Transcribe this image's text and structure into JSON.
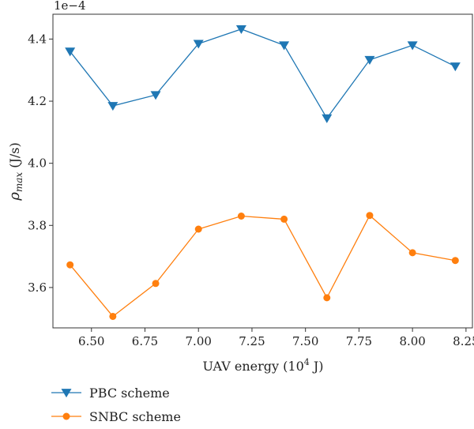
{
  "chart_data": {
    "type": "line",
    "xlabel": "UAV energy (10",
    "xlabel_exp": "4",
    "xlabel_tail": " J)",
    "ylabel_sym": "ρ",
    "ylabel_sub": "max",
    "ylabel_unit": " (J/s)",
    "offset_text": "1e−4",
    "xlim": [
      6.32,
      8.28
    ],
    "ylim": [
      3.47,
      4.48
    ],
    "xticks": [
      "6.50",
      "6.75",
      "7.00",
      "7.25",
      "7.50",
      "7.75",
      "8.00",
      "8.25"
    ],
    "xtick_values": [
      6.5,
      6.75,
      7.0,
      7.25,
      7.5,
      7.75,
      8.0,
      8.25
    ],
    "yticks": [
      "3.6",
      "3.8",
      "4.0",
      "4.2",
      "4.4"
    ],
    "ytick_values": [
      3.6,
      3.8,
      4.0,
      4.2,
      4.4
    ],
    "x": [
      6.4,
      6.6,
      6.8,
      7.0,
      7.2,
      7.4,
      7.6,
      7.8,
      8.0,
      8.2
    ],
    "series": [
      {
        "name": "PBC scheme",
        "color": "#1f77b4",
        "marker": "triangle-down",
        "values": [
          4.36,
          4.185,
          4.22,
          4.385,
          4.432,
          4.38,
          4.145,
          4.333,
          4.38,
          4.312
        ]
      },
      {
        "name": "SNBC scheme",
        "color": "#ff7f0e",
        "marker": "circle",
        "values": [
          3.673,
          3.507,
          3.613,
          3.788,
          3.83,
          3.82,
          3.567,
          3.832,
          3.712,
          3.687
        ]
      }
    ],
    "legend_position": "below-left",
    "grid": false
  }
}
